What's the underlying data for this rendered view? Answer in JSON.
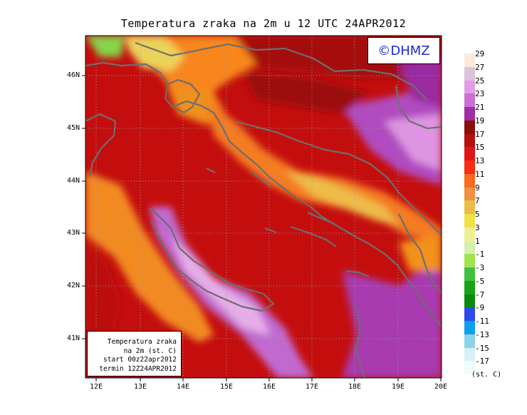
{
  "title": "Temperatura zraka na 2m u 12 UTC 24APR2012",
  "logo": "©DHMZ",
  "infobox": {
    "line1": "Temperatura zraka",
    "line2": "na 2m (st. C)",
    "line3": "start 00z22apr2012",
    "line4": "termin 12Z24APR2012"
  },
  "lat_labels": [
    "46N",
    "45N",
    "44N",
    "43N",
    "42N",
    "41N"
  ],
  "lon_labels": [
    "12E",
    "13E",
    "14E",
    "15E",
    "16E",
    "17E",
    "18E",
    "19E",
    "20E"
  ],
  "legend": {
    "labels": [
      "29",
      "27",
      "25",
      "23",
      "21",
      "19",
      "17",
      "15",
      "13",
      "11",
      "9",
      "7",
      "5",
      "3",
      "1",
      "-1",
      "-3",
      "-5",
      "-7",
      "-9",
      "-11",
      "-13",
      "-15",
      "-17"
    ],
    "colors": [
      "#fbe9dc",
      "#dcc3dc",
      "#e39de6",
      "#cc6fd8",
      "#a02ca6",
      "#8b0d0d",
      "#b50f0f",
      "#dd1616",
      "#fa2c14",
      "#f86b20",
      "#f09040",
      "#ebbc48",
      "#f0e244",
      "#eef096",
      "#d6eeb0",
      "#a2e44e",
      "#40c040",
      "#16a416",
      "#0a8a10",
      "#2e4ae8",
      "#0aa0ee",
      "#8cd4e8",
      "#d4f2f6",
      "#eefcfc"
    ],
    "unit": "(st. C)"
  },
  "colors": {
    "background": "#ffffff",
    "sea": "#c40e0e",
    "coast": "#6e6e6e",
    "logo_text": "#1a2bd6"
  }
}
